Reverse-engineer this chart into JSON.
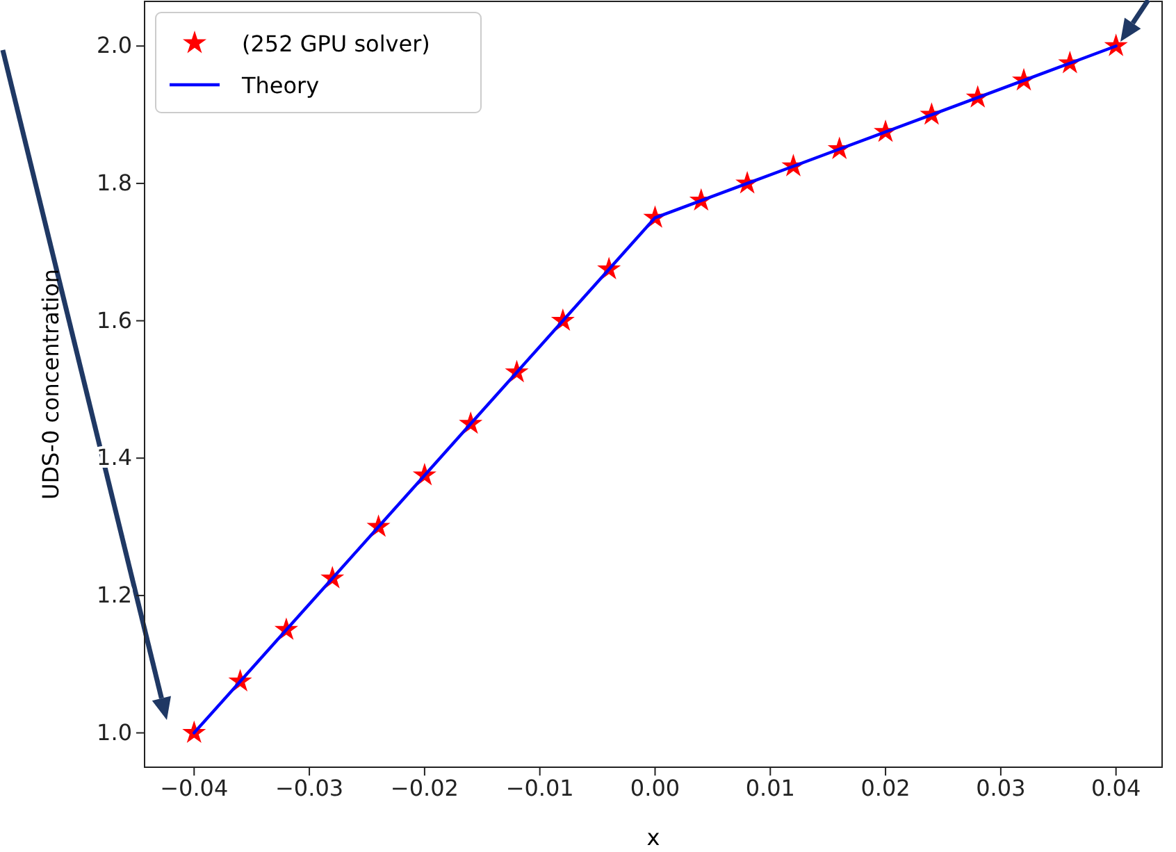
{
  "chart_data": {
    "type": "line",
    "xlabel": "x",
    "ylabel": "UDS-0 concentration",
    "x": [
      -0.04,
      -0.036,
      -0.032,
      -0.028,
      -0.024,
      -0.02,
      -0.016,
      -0.012,
      -0.008,
      -0.004,
      0,
      0.004,
      0.008,
      0.012,
      0.016,
      0.02,
      0.024,
      0.028,
      0.032,
      0.036,
      0.04
    ],
    "series": [
      {
        "name": "(252 GPU solver)",
        "type": "scatter",
        "marker": "star",
        "color": "#ff0000",
        "values": [
          1.0,
          1.075,
          1.15,
          1.225,
          1.3,
          1.375,
          1.45,
          1.525,
          1.6,
          1.675,
          1.75,
          1.775,
          1.8,
          1.825,
          1.85,
          1.875,
          1.9,
          1.925,
          1.95,
          1.975,
          2.0
        ]
      },
      {
        "name": "Theory",
        "marker": "none",
        "line_style": "solid",
        "color": "#0000ff",
        "values": [
          1.0,
          1.075,
          1.15,
          1.225,
          1.3,
          1.375,
          1.45,
          1.525,
          1.6,
          1.675,
          1.75,
          1.775,
          1.8,
          1.825,
          1.85,
          1.875,
          1.9,
          1.925,
          1.95,
          1.975,
          2.0
        ]
      }
    ],
    "xlim": [
      -0.0443,
      0.044
    ],
    "ylim": [
      0.95,
      2.065
    ],
    "xticks": [
      {
        "value": -0.04,
        "label": "−0.04"
      },
      {
        "value": -0.03,
        "label": "−0.03"
      },
      {
        "value": -0.02,
        "label": "−0.02"
      },
      {
        "value": -0.01,
        "label": "−0.01"
      },
      {
        "value": 0,
        "label": "0.00"
      },
      {
        "value": 0.01,
        "label": "0.01"
      },
      {
        "value": 0.02,
        "label": "0.02"
      },
      {
        "value": 0.03,
        "label": "0.03"
      },
      {
        "value": 0.04,
        "label": "0.04"
      }
    ],
    "yticks": [
      {
        "value": 1.0,
        "label": "1.0"
      },
      {
        "value": 1.2,
        "label": "1.2"
      },
      {
        "value": 1.4,
        "label": "1.4"
      },
      {
        "value": 1.6,
        "label": "1.6"
      },
      {
        "value": 1.8,
        "label": "1.8"
      },
      {
        "value": 2.0,
        "label": "2.0"
      }
    ],
    "grid": false,
    "legend": "top left"
  }
}
